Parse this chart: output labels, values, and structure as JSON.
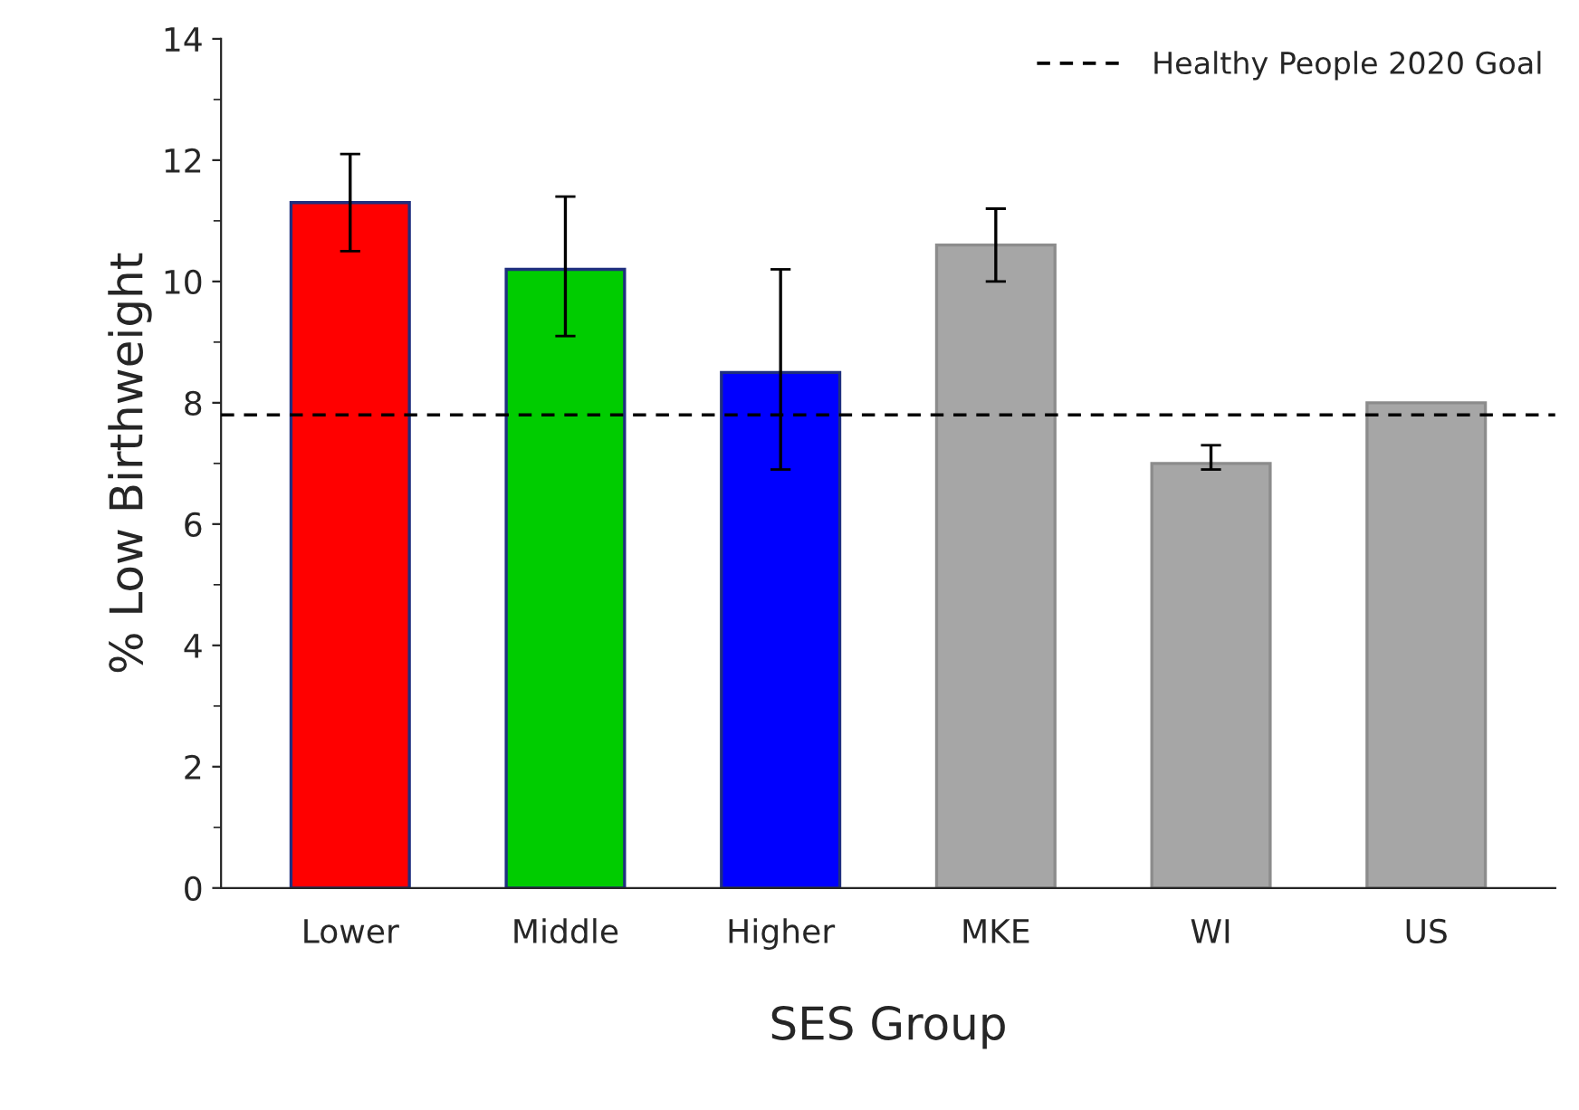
{
  "chart_data": {
    "type": "bar",
    "xlabel": "SES Group",
    "ylabel": "% Low Birthweight",
    "categories": [
      "Lower",
      "Middle",
      "Higher",
      "MKE",
      "WI",
      "US"
    ],
    "values": [
      11.3,
      10.2,
      8.5,
      10.6,
      7.0,
      8.0
    ],
    "colors": [
      "#ff0000",
      "#00cc00",
      "#0000ff",
      "#a6a6a6",
      "#a6a6a6",
      "#a6a6a6"
    ],
    "errors": [
      [
        10.5,
        12.1
      ],
      [
        9.1,
        11.4
      ],
      [
        6.9,
        10.2
      ],
      [
        10.0,
        11.2
      ],
      [
        6.9,
        7.3
      ],
      null
    ],
    "ylim": [
      0,
      14
    ],
    "yticks": [
      0,
      2,
      4,
      6,
      8,
      10,
      12,
      14
    ],
    "ref_lines": [
      {
        "axis": "y",
        "value": 7.8,
        "label": "Healthy People 2020 Goal",
        "color": "#000000",
        "line_style": "dashed"
      }
    ],
    "legend": "top right",
    "grid": false
  }
}
